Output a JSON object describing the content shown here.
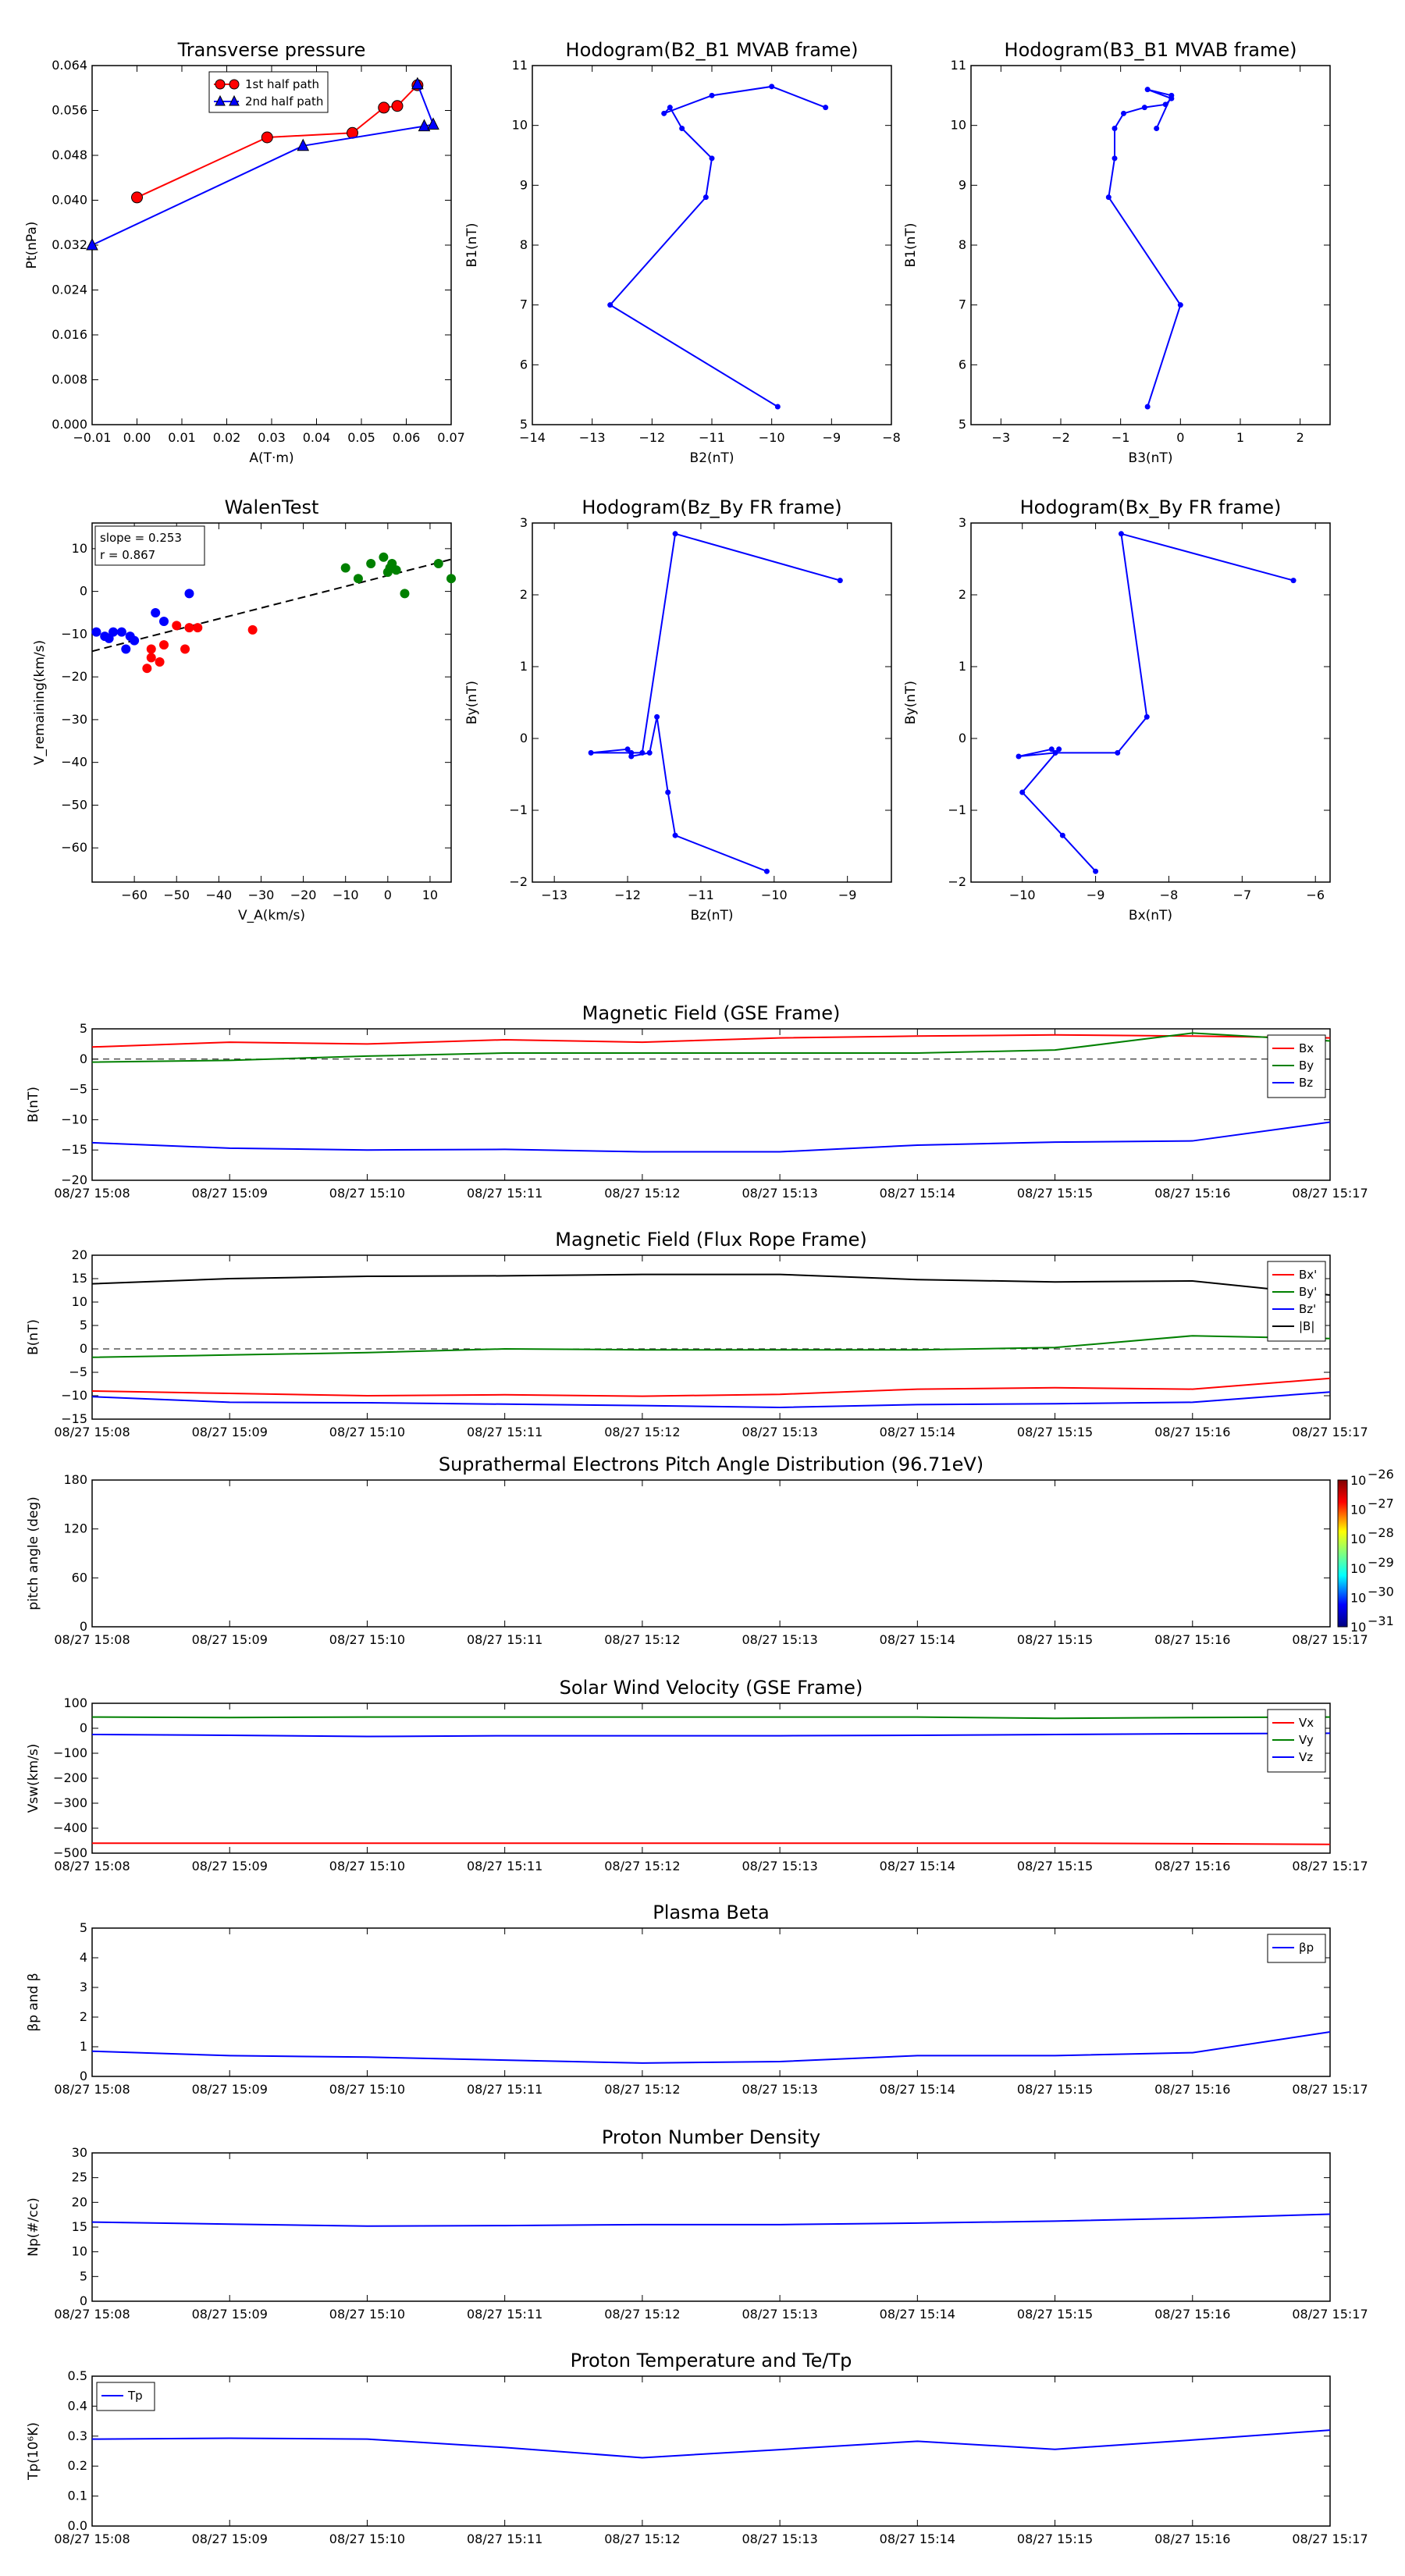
{
  "chart_data": [
    {
      "type": "line",
      "title": "Transverse pressure",
      "xlabel": "A(T·m)",
      "ylabel": "Pt(nPa)",
      "xlim": [
        -0.01,
        0.07
      ],
      "ylim": [
        0.0,
        0.064
      ],
      "xticks": [
        "−0.01",
        "0.00",
        "0.01",
        "0.02",
        "0.03",
        "0.04",
        "0.05",
        "0.06",
        "0.07"
      ],
      "yticks": [
        "0.000",
        "0.008",
        "0.016",
        "0.024",
        "0.032",
        "0.040",
        "0.048",
        "0.056",
        "0.064"
      ],
      "legend": "top-center",
      "series": [
        {
          "name": "1st half path",
          "color": "#ff0000",
          "marker": "circle",
          "x": [
            0.0,
            0.029,
            0.048,
            0.055,
            0.058,
            0.0625
          ],
          "y": [
            0.0405,
            0.0512,
            0.052,
            0.0565,
            0.0568,
            0.0605
          ]
        },
        {
          "name": "2nd half path",
          "color": "#0000ff",
          "marker": "triangle",
          "x": [
            -0.01,
            0.037,
            0.064,
            0.066,
            0.0625
          ],
          "y": [
            0.032,
            0.0497,
            0.0532,
            0.0535,
            0.0607
          ]
        }
      ]
    },
    {
      "type": "line",
      "title": "Hodogram(B2_B1 MVAB frame)",
      "xlabel": "B2(nT)",
      "ylabel": "B1(nT)",
      "xlim": [
        -14,
        -8
      ],
      "ylim": [
        5,
        11
      ],
      "xticks": [
        "−14",
        "−13",
        "−12",
        "−11",
        "−10",
        "−9",
        "−8"
      ],
      "yticks": [
        "5",
        "6",
        "7",
        "8",
        "9",
        "10",
        "11"
      ],
      "series": [
        {
          "color": "#0000ff",
          "x": [
            -9.9,
            -12.7,
            -11.1,
            -11.0,
            -11.5,
            -11.7,
            -11.8,
            -11.0,
            -10.0,
            -9.1
          ],
          "y": [
            5.3,
            7.0,
            8.8,
            9.45,
            9.95,
            10.3,
            10.2,
            10.5,
            10.65,
            10.3
          ]
        }
      ]
    },
    {
      "type": "line",
      "title": "Hodogram(B3_B1 MVAB frame)",
      "xlabel": "B3(nT)",
      "ylabel": "B1(nT)",
      "xlim": [
        -3.5,
        2.5
      ],
      "ylim": [
        5,
        11
      ],
      "xticks": [
        "−3",
        "−2",
        "−1",
        "0",
        "1",
        "2"
      ],
      "yticks": [
        "5",
        "6",
        "7",
        "8",
        "9",
        "10",
        "11"
      ],
      "series": [
        {
          "color": "#0000ff",
          "x": [
            -0.55,
            0.0,
            -1.2,
            -1.1,
            -1.1,
            -0.95,
            -0.6,
            -0.25,
            -0.15,
            -0.55,
            -0.15,
            -0.4
          ],
          "y": [
            5.3,
            7.0,
            8.8,
            9.45,
            9.95,
            10.2,
            10.3,
            10.35,
            10.45,
            10.6,
            10.5,
            9.95
          ]
        }
      ]
    },
    {
      "type": "scatter",
      "title": "WalenTest",
      "xlabel": "V_A(km/s)",
      "ylabel": "V_remaining(km/s)",
      "xlim": [
        -70,
        15
      ],
      "ylim": [
        -68,
        16
      ],
      "xticks": [
        "−60",
        "−50",
        "−40",
        "−30",
        "−20",
        "−10",
        "0",
        "10"
      ],
      "yticks": [
        "−60",
        "−50",
        "−40",
        "−30",
        "−20",
        "−10",
        "0",
        "10"
      ],
      "annotation": [
        "slope = 0.253",
        "r = 0.867"
      ],
      "fit": {
        "slope": 0.253,
        "x": [
          -70,
          15
        ],
        "y": [
          -14.0,
          7.5
        ]
      },
      "series": [
        {
          "color": "#0000ff",
          "x": [
            -69,
            -67,
            -65,
            -63,
            -61,
            -60,
            -62,
            -66,
            -55,
            -53,
            -47
          ],
          "y": [
            -9.5,
            -10.5,
            -9.5,
            -9.5,
            -10.5,
            -11.5,
            -13.5,
            -11.0,
            -5.0,
            -7.0,
            -0.5
          ]
        },
        {
          "color": "#ff0000",
          "x": [
            -56,
            -54,
            -56,
            -57,
            -53,
            -50,
            -48,
            -47,
            -45,
            -32
          ],
          "y": [
            -15.5,
            -16.5,
            -13.5,
            -18.0,
            -12.5,
            -8.0,
            -13.5,
            -8.5,
            -8.5,
            -9.0
          ]
        },
        {
          "color": "#008000",
          "x": [
            -10,
            -7,
            -4,
            -1,
            1,
            2,
            0.5,
            0,
            4,
            12,
            15
          ],
          "y": [
            5.5,
            3.0,
            6.5,
            8.0,
            6.5,
            5.0,
            5.5,
            4.5,
            -0.5,
            6.5,
            3.0
          ]
        }
      ]
    },
    {
      "type": "line",
      "title": "Hodogram(Bz_By FR frame)",
      "xlabel": "Bz(nT)",
      "ylabel": "By(nT)",
      "xlim": [
        -13.3,
        -8.4
      ],
      "ylim": [
        -2,
        3
      ],
      "xticks": [
        "−13",
        "−12",
        "−11",
        "−10",
        "−9"
      ],
      "yticks": [
        "−2",
        "−1",
        "0",
        "1",
        "2",
        "3"
      ],
      "series": [
        {
          "color": "#0000ff",
          "x": [
            -10.1,
            -11.35,
            -11.45,
            -11.6,
            -11.7,
            -11.95,
            -12.0,
            -12.5,
            -11.95,
            -11.8,
            -11.35,
            -9.1
          ],
          "y": [
            -1.85,
            -1.35,
            -0.75,
            0.3,
            -0.2,
            -0.25,
            -0.15,
            -0.2,
            -0.2,
            -0.2,
            2.85,
            2.2
          ]
        }
      ]
    },
    {
      "type": "line",
      "title": "Hodogram(Bx_By FR frame)",
      "xlabel": "Bx(nT)",
      "ylabel": "By(nT)",
      "xlim": [
        -10.7,
        -5.8
      ],
      "ylim": [
        -2,
        3
      ],
      "xticks": [
        "−10",
        "−9",
        "−8",
        "−7",
        "−6"
      ],
      "yticks": [
        "−2",
        "−1",
        "0",
        "1",
        "2",
        "3"
      ],
      "series": [
        {
          "color": "#0000ff",
          "x": [
            -9.0,
            -9.45,
            -10.0,
            -9.5,
            -9.55,
            -9.6,
            -10.05,
            -9.55,
            -8.7,
            -8.3,
            -8.65,
            -6.3
          ],
          "y": [
            -1.85,
            -1.35,
            -0.75,
            -0.15,
            -0.2,
            -0.15,
            -0.25,
            -0.2,
            -0.2,
            0.3,
            2.85,
            2.2
          ]
        }
      ]
    },
    {
      "type": "line",
      "title": "Magnetic Field (GSE Frame)",
      "ylabel": "B(nT)",
      "ylim": [
        -20,
        5
      ],
      "yticks": [
        "−20",
        "−15",
        "−10",
        "−5",
        "0",
        "5"
      ],
      "xticks": [
        "08/27 15:08",
        "08/27 15:09",
        "08/27 15:10",
        "08/27 15:11",
        "08/27 15:12",
        "08/27 15:13",
        "08/27 15:14",
        "08/27 15:15",
        "08/27 15:16",
        "08/27 15:17"
      ],
      "zero_line": true,
      "legend": "right",
      "series": [
        {
          "name": "Bx",
          "color": "#ff0000",
          "values": [
            2.0,
            2.8,
            2.5,
            3.2,
            2.8,
            3.5,
            3.8,
            4.0,
            3.8,
            3.5
          ]
        },
        {
          "name": "By",
          "color": "#008000",
          "values": [
            -0.5,
            -0.2,
            0.5,
            1.0,
            1.0,
            1.0,
            1.0,
            1.5,
            4.3,
            3.0
          ]
        },
        {
          "name": "Bz",
          "color": "#0000ff",
          "values": [
            -13.8,
            -14.7,
            -15.0,
            -14.9,
            -15.3,
            -15.3,
            -14.2,
            -13.7,
            -13.5,
            -10.4
          ]
        }
      ]
    },
    {
      "type": "line",
      "title": "Magnetic Field (Flux Rope Frame)",
      "ylabel": "B(nT)",
      "ylim": [
        -15,
        20
      ],
      "yticks": [
        "−15",
        "−10",
        "−5",
        "0",
        "5",
        "10",
        "15",
        "20"
      ],
      "xticks": [
        "08/27 15:08",
        "08/27 15:09",
        "08/27 15:10",
        "08/27 15:11",
        "08/27 15:12",
        "08/27 15:13",
        "08/27 15:14",
        "08/27 15:15",
        "08/27 15:16",
        "08/27 15:17"
      ],
      "zero_line": true,
      "legend": "right",
      "series": [
        {
          "name": "Bx'",
          "color": "#ff0000",
          "values": [
            -9.0,
            -9.5,
            -10.0,
            -9.8,
            -10.1,
            -9.7,
            -8.6,
            -8.3,
            -8.6,
            -6.3
          ]
        },
        {
          "name": "By'",
          "color": "#008000",
          "values": [
            -1.8,
            -1.3,
            -0.8,
            0.0,
            -0.2,
            -0.2,
            -0.2,
            0.3,
            2.8,
            2.2
          ]
        },
        {
          "name": "Bz'",
          "color": "#0000ff",
          "values": [
            -10.2,
            -11.4,
            -11.5,
            -11.8,
            -12.1,
            -12.5,
            -11.9,
            -11.7,
            -11.4,
            -9.2
          ]
        },
        {
          "name": "|B|",
          "color": "#000000",
          "values": [
            13.9,
            15.0,
            15.5,
            15.6,
            15.9,
            15.9,
            14.8,
            14.3,
            14.5,
            11.5
          ]
        }
      ]
    },
    {
      "type": "heatmap",
      "title": "Suprathermal Electrons Pitch Angle Distribution (96.71eV)",
      "ylabel": "pitch angle (deg)",
      "ylim": [
        0,
        180
      ],
      "yticks": [
        "0",
        "60",
        "120",
        "180"
      ],
      "xticks": [
        "08/27 15:08",
        "08/27 15:09",
        "08/27 15:10",
        "08/27 15:11",
        "08/27 15:12",
        "08/27 15:13",
        "08/27 15:14",
        "08/27 15:15",
        "08/27 15:16",
        "08/27 15:17"
      ],
      "colorbar": {
        "labels": [
          "10",
          "10",
          "10",
          "10",
          "10",
          "10"
        ],
        "exponents": [
          "−26",
          "−27",
          "−28",
          "−29",
          "−30",
          "−31"
        ]
      }
    },
    {
      "type": "line",
      "title": "Solar Wind Velocity (GSE Frame)",
      "ylabel": "Vsw(km/s)",
      "ylim": [
        -500,
        100
      ],
      "yticks": [
        "−500",
        "−400",
        "−300",
        "−200",
        "−100",
        "0",
        "100"
      ],
      "xticks": [
        "08/27 15:08",
        "08/27 15:09",
        "08/27 15:10",
        "08/27 15:11",
        "08/27 15:12",
        "08/27 15:13",
        "08/27 15:14",
        "08/27 15:15",
        "08/27 15:16",
        "08/27 15:17"
      ],
      "legend": "right",
      "series": [
        {
          "name": "Vx",
          "color": "#ff0000",
          "values": [
            -460,
            -460,
            -460,
            -460,
            -460,
            -460,
            -460,
            -460,
            -462,
            -465
          ]
        },
        {
          "name": "Vy",
          "color": "#008000",
          "values": [
            45,
            43,
            45,
            45,
            45,
            45,
            45,
            40,
            43,
            45
          ]
        },
        {
          "name": "Vz",
          "color": "#0000ff",
          "values": [
            -25,
            -28,
            -33,
            -30,
            -30,
            -30,
            -28,
            -25,
            -22,
            -20
          ]
        }
      ]
    },
    {
      "type": "line",
      "title": "Plasma Beta",
      "ylabel": "βp and β",
      "ylim": [
        0,
        5
      ],
      "yticks": [
        "0",
        "1",
        "2",
        "3",
        "4",
        "5"
      ],
      "xticks": [
        "08/27 15:08",
        "08/27 15:09",
        "08/27 15:10",
        "08/27 15:11",
        "08/27 15:12",
        "08/27 15:13",
        "08/27 15:14",
        "08/27 15:15",
        "08/27 15:16",
        "08/27 15:17"
      ],
      "legend": "top-right",
      "series": [
        {
          "name": "βp",
          "color": "#0000ff",
          "values": [
            0.85,
            0.7,
            0.65,
            0.55,
            0.45,
            0.5,
            0.7,
            0.7,
            0.8,
            1.5
          ]
        }
      ]
    },
    {
      "type": "line",
      "title": "Proton Number Density",
      "ylabel": "Np(#/cc)",
      "ylim": [
        0,
        30
      ],
      "yticks": [
        "0",
        "5",
        "10",
        "15",
        "20",
        "25",
        "30"
      ],
      "xticks": [
        "08/27 15:08",
        "08/27 15:09",
        "08/27 15:10",
        "08/27 15:11",
        "08/27 15:12",
        "08/27 15:13",
        "08/27 15:14",
        "08/27 15:15",
        "08/27 15:16",
        "08/27 15:17"
      ],
      "series": [
        {
          "color": "#0000ff",
          "values": [
            16.0,
            15.6,
            15.2,
            15.3,
            15.5,
            15.5,
            15.8,
            16.2,
            16.8,
            17.6
          ]
        }
      ]
    },
    {
      "type": "line",
      "title": "Proton Temperature and Te/Tp",
      "ylabel": "Tp(10⁶K)",
      "ylim": [
        0,
        0.5
      ],
      "yticks": [
        "0.0",
        "0.1",
        "0.2",
        "0.3",
        "0.4",
        "0.5"
      ],
      "xticks": [
        "08/27 15:08",
        "08/27 15:09",
        "08/27 15:10",
        "08/27 15:11",
        "08/27 15:12",
        "08/27 15:13",
        "08/27 15:14",
        "08/27 15:15",
        "08/27 15:16",
        "08/27 15:17"
      ],
      "legend": "top-left",
      "series": [
        {
          "name": "Tp",
          "color": "#0000ff",
          "values": [
            0.29,
            0.293,
            0.29,
            0.262,
            0.228,
            0.255,
            0.283,
            0.256,
            0.287,
            0.32
          ]
        }
      ]
    }
  ]
}
